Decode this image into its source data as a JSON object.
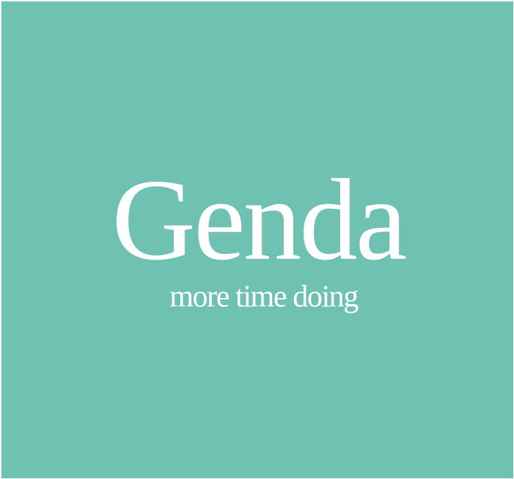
{
  "brand": {
    "title": "Genda",
    "tagline": "more time doing"
  },
  "colors": {
    "background": "#6fc2b1",
    "text": "#ffffff"
  }
}
